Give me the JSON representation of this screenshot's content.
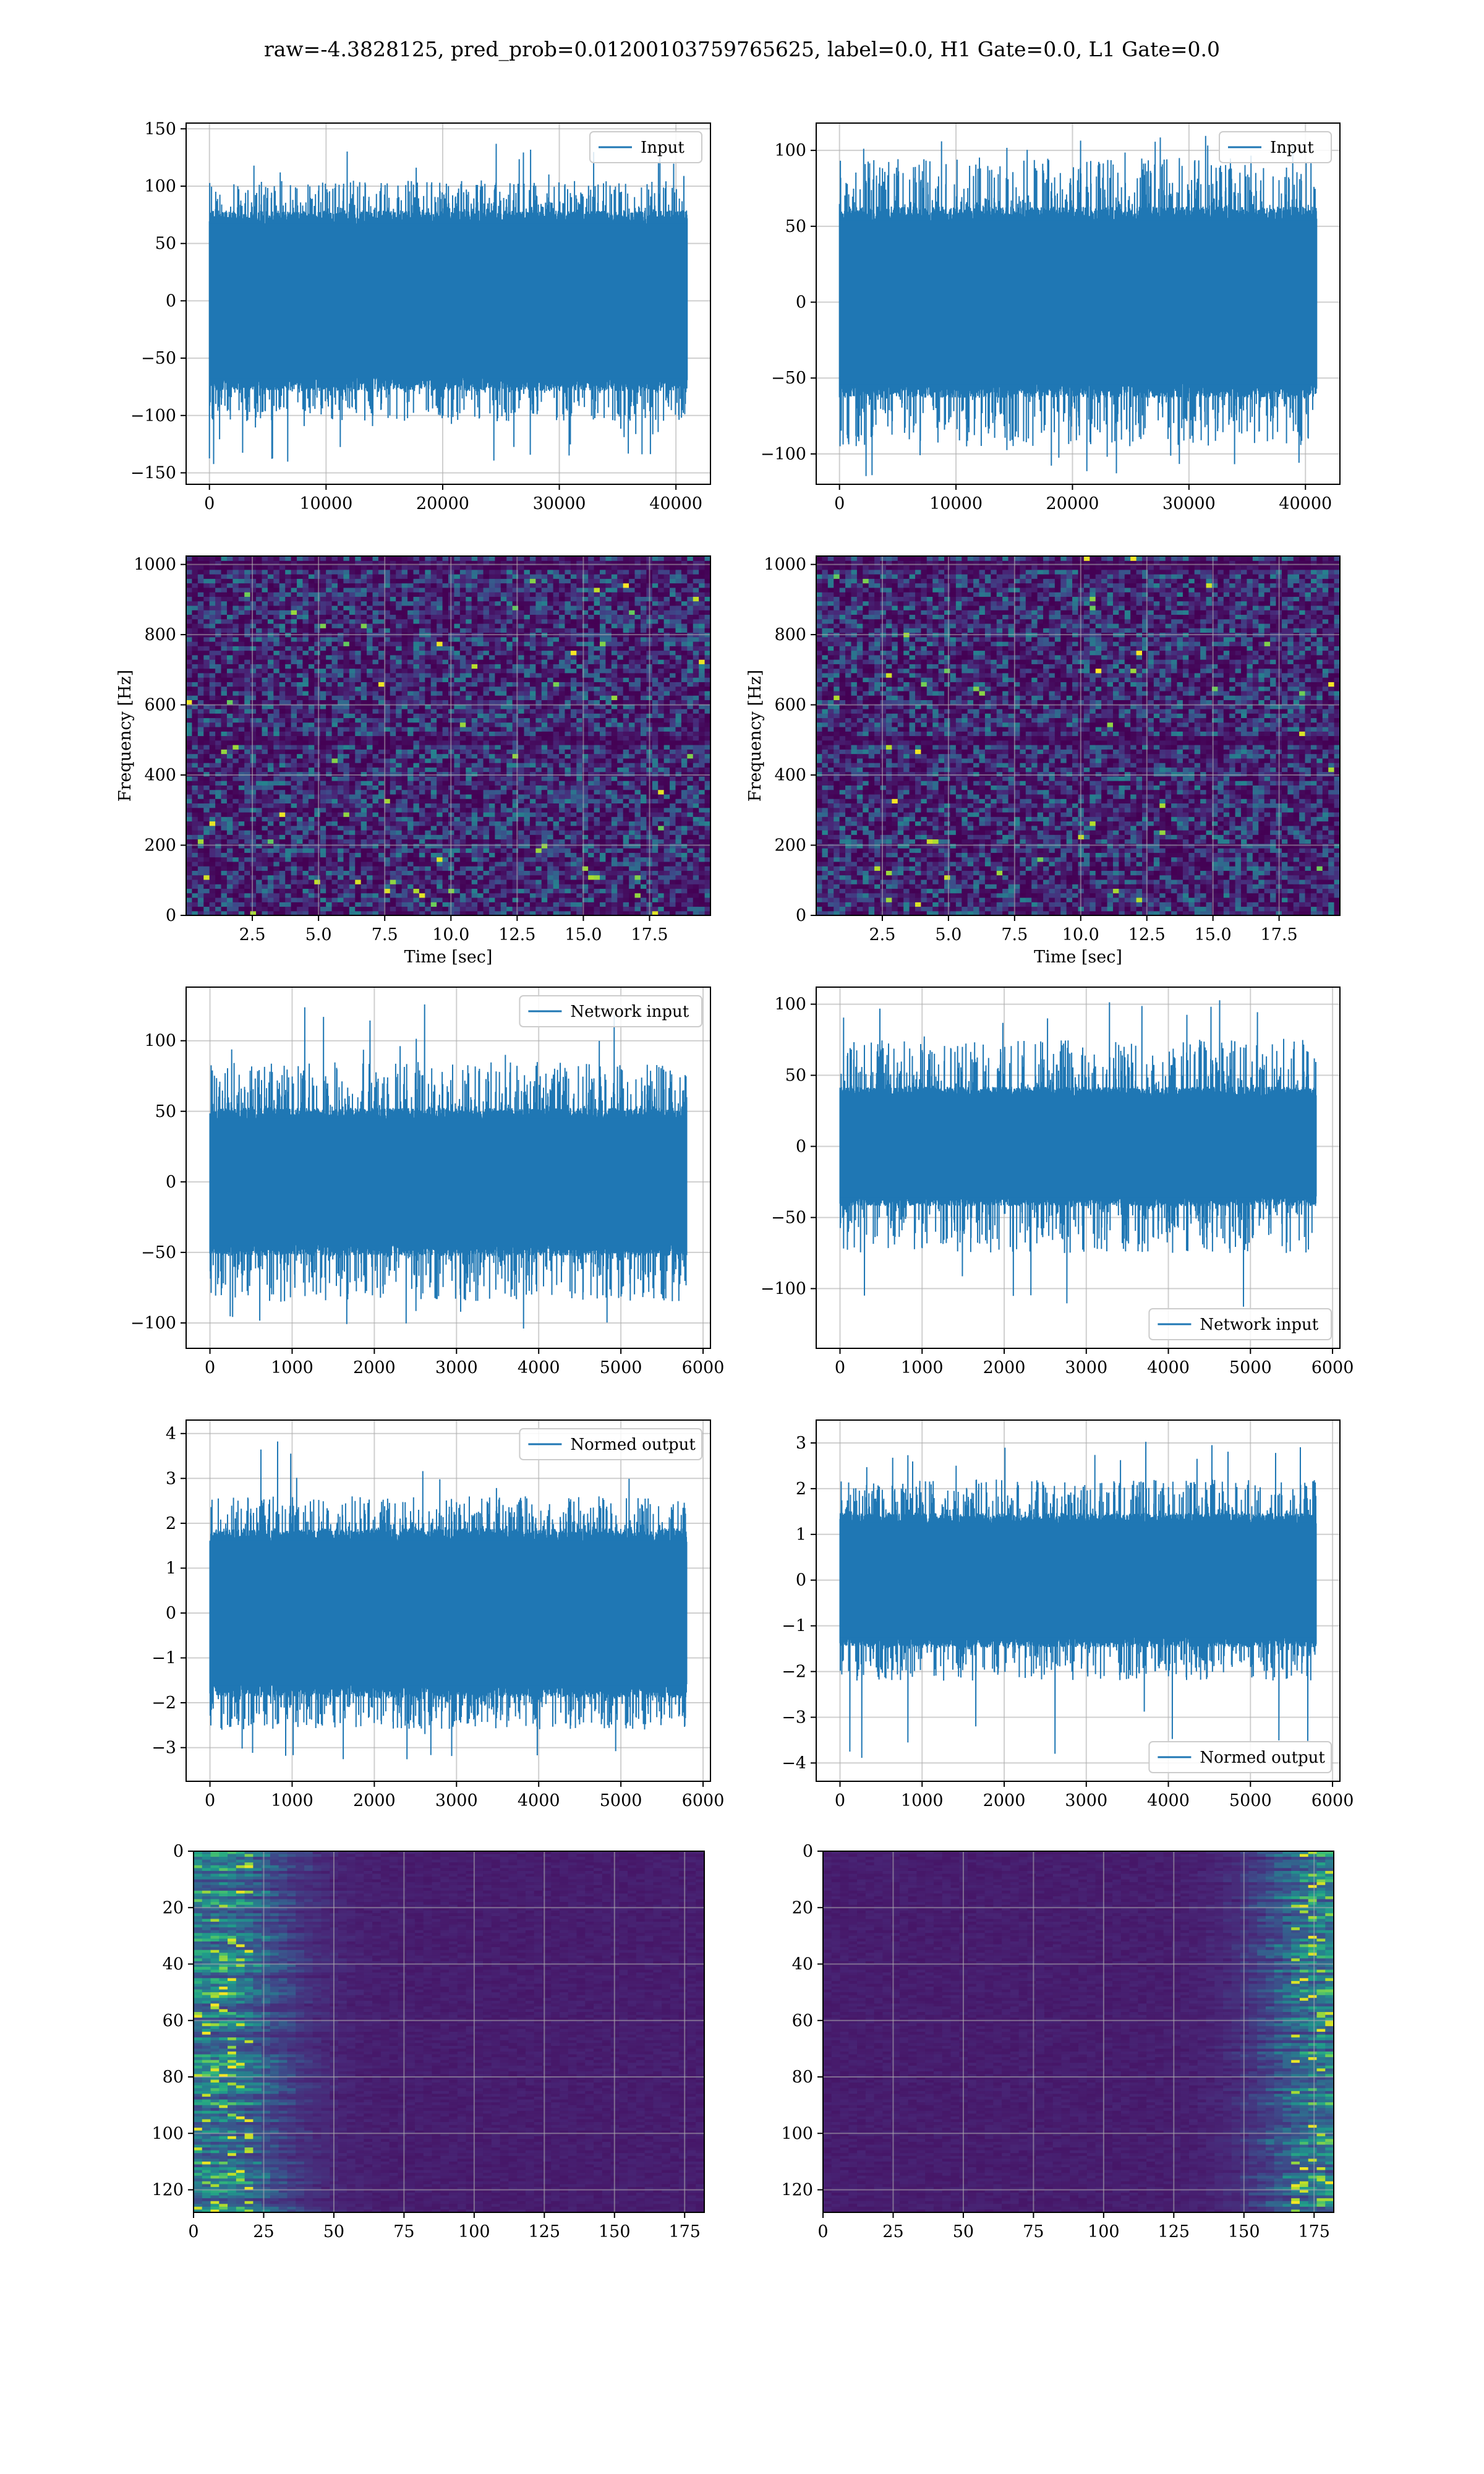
{
  "figure": {
    "suptitle": "raw=-4.3828125, pred_prob=0.01200103759765625, label=0.0, H1 Gate=0.0, L1 Gate=0.0"
  },
  "colors": {
    "line": "#1f77b4",
    "grid": "#b0b0b0",
    "viridis": [
      "#440154",
      "#482878",
      "#3e4989",
      "#31688e",
      "#26828e",
      "#1f9e89",
      "#35b779",
      "#6ece58",
      "#b5de2b",
      "#fde725"
    ]
  },
  "chart_data": [
    {
      "id": "r0c0",
      "type": "line",
      "legend": "Input",
      "legend_loc": "upper right",
      "xlim": [
        -2000,
        42960
      ],
      "ylim": [
        -160,
        155
      ],
      "xticks": [
        0,
        10000,
        20000,
        30000,
        40000
      ],
      "yticks": [
        -150,
        -100,
        -50,
        0,
        50,
        100,
        150
      ],
      "signal": {
        "n": 40960,
        "x_start": 0,
        "x_end": 40960,
        "core": 75,
        "typical_max": 105,
        "max": 140,
        "min": -143,
        "description_free": true
      },
      "grid": true
    },
    {
      "id": "r0c1",
      "type": "line",
      "legend": "Input",
      "legend_loc": "upper right",
      "xlim": [
        -2000,
        42960
      ],
      "ylim": [
        -120,
        118
      ],
      "xticks": [
        0,
        10000,
        20000,
        30000,
        40000
      ],
      "yticks": [
        -100,
        -50,
        0,
        50,
        100
      ],
      "signal": {
        "n": 40960,
        "x_start": 0,
        "x_end": 40960,
        "core": 60,
        "typical_max": 95,
        "max": 110,
        "min": -115
      },
      "grid": true
    },
    {
      "id": "r1c0",
      "type": "heatmap",
      "xlabel": "Time [sec]",
      "ylabel": "Frequency [Hz]",
      "xlim": [
        0,
        19.8
      ],
      "ylim": [
        0,
        1024
      ],
      "xticks": [
        2.5,
        5.0,
        7.5,
        10.0,
        12.5,
        15.0,
        17.5
      ],
      "xticklabels": [
        "2.5",
        "5.0",
        "7.5",
        "10.0",
        "12.5",
        "15.0",
        "17.5"
      ],
      "yticks": [
        0,
        200,
        400,
        600,
        800,
        1000
      ],
      "dark_bands_hz": [
        500,
        1000
      ],
      "grid": true
    },
    {
      "id": "r1c1",
      "type": "heatmap",
      "xlabel": "Time [sec]",
      "ylabel": "Frequency [Hz]",
      "xlim": [
        0,
        19.8
      ],
      "ylim": [
        0,
        1024
      ],
      "xticks": [
        2.5,
        5.0,
        7.5,
        10.0,
        12.5,
        15.0,
        17.5
      ],
      "xticklabels": [
        "2.5",
        "5.0",
        "7.5",
        "10.0",
        "12.5",
        "15.0",
        "17.5"
      ],
      "yticks": [
        0,
        200,
        400,
        600,
        800,
        1000
      ],
      "dark_bands_hz": [
        500,
        1000
      ],
      "grid": true
    },
    {
      "id": "r2c0",
      "type": "line",
      "legend": "Network input",
      "legend_loc": "upper right",
      "xlim": [
        -290,
        6090
      ],
      "ylim": [
        -118,
        138
      ],
      "xticks": [
        0,
        1000,
        2000,
        3000,
        4000,
        5000,
        6000
      ],
      "yticks": [
        -100,
        -50,
        0,
        50,
        100
      ],
      "signal": {
        "n": 5800,
        "x_start": 0,
        "x_end": 5800,
        "core": 50,
        "typical_max": 85,
        "max": 127,
        "min": -105
      },
      "grid": true
    },
    {
      "id": "r2c1",
      "type": "line",
      "legend": "Network input",
      "legend_loc": "lower right",
      "xlim": [
        -290,
        6090
      ],
      "ylim": [
        -142,
        112
      ],
      "xticks": [
        0,
        1000,
        2000,
        3000,
        4000,
        5000,
        6000
      ],
      "yticks": [
        -100,
        -50,
        0,
        50,
        100
      ],
      "signal": {
        "n": 5800,
        "x_start": 0,
        "x_end": 5800,
        "core": 40,
        "typical_max": 75,
        "max": 103,
        "min": -130
      },
      "grid": true
    },
    {
      "id": "r3c0",
      "type": "line",
      "legend": "Normed output",
      "legend_loc": "upper right",
      "xlim": [
        -290,
        6090
      ],
      "ylim": [
        -3.75,
        4.3
      ],
      "xticks": [
        0,
        1000,
        2000,
        3000,
        4000,
        5000,
        6000
      ],
      "yticks": [
        -3,
        -2,
        -1,
        0,
        1,
        2,
        3,
        4
      ],
      "signal": {
        "n": 5800,
        "x_start": 0,
        "x_end": 5800,
        "core": 1.8,
        "typical_max": 2.6,
        "max": 4.0,
        "min": -3.3
      },
      "grid": true
    },
    {
      "id": "r3c1",
      "type": "line",
      "legend": "Normed output",
      "legend_loc": "lower right",
      "xlim": [
        -290,
        6090
      ],
      "ylim": [
        -4.4,
        3.5
      ],
      "xticks": [
        0,
        1000,
        2000,
        3000,
        4000,
        5000,
        6000
      ],
      "yticks": [
        -4,
        -3,
        -2,
        -1,
        0,
        1,
        2,
        3
      ],
      "signal": {
        "n": 5800,
        "x_start": 0,
        "x_end": 5800,
        "core": 1.4,
        "typical_max": 2.2,
        "max": 3.1,
        "min": -4.0
      },
      "grid": true
    },
    {
      "id": "r4c0",
      "type": "heatmap",
      "xlabel": "",
      "ylabel": "",
      "xlim": [
        0,
        182
      ],
      "ylim": [
        128,
        0
      ],
      "xticks": [
        0,
        25,
        50,
        75,
        100,
        125,
        150,
        175
      ],
      "yticks": [
        0,
        20,
        40,
        60,
        80,
        100,
        120
      ],
      "energy_concentration": "left (x < 50)",
      "grid": true
    },
    {
      "id": "r4c1",
      "type": "heatmap",
      "xlabel": "",
      "ylabel": "",
      "xlim": [
        0,
        182
      ],
      "ylim": [
        128,
        0
      ],
      "xticks": [
        0,
        25,
        50,
        75,
        100,
        125,
        150,
        175
      ],
      "yticks": [
        0,
        20,
        40,
        60,
        80,
        100,
        120
      ],
      "energy_concentration": "right (x > 150)",
      "grid": true
    }
  ]
}
